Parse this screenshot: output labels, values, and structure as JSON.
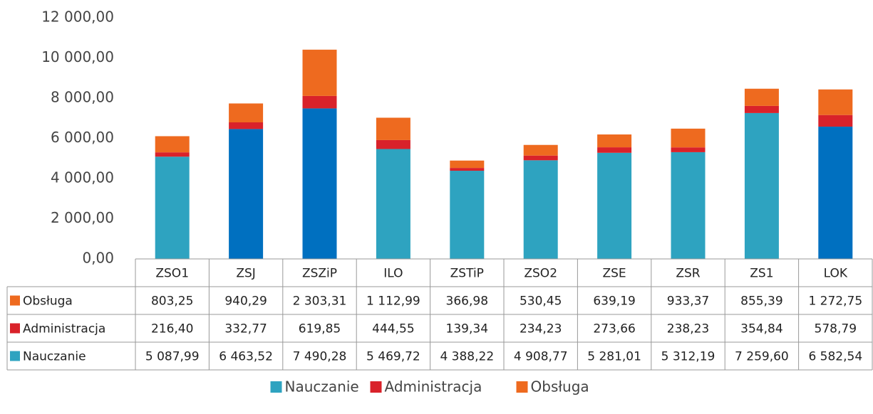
{
  "chart_data": {
    "type": "stacked_bar",
    "categories": [
      "ZSO1",
      "ZSJ",
      "ZSZiP",
      "ILO",
      "ZSTiP",
      "ZSO2",
      "ZSE",
      "ZSR",
      "ZS1",
      "LOK"
    ],
    "series": [
      {
        "name": "Nauczanie",
        "color": "#2ea3c0",
        "colors": [
          "#2ea3c0",
          "#0070c0",
          "#0070c0",
          "#2ea3c0",
          "#2ea3c0",
          "#2ea3c0",
          "#2ea3c0",
          "#2ea3c0",
          "#2ea3c0",
          "#0070c0"
        ],
        "values": [
          5087.99,
          6463.52,
          7490.28,
          5469.72,
          4388.22,
          4908.77,
          5281.01,
          5312.19,
          7259.6,
          6582.54
        ],
        "value_labels": [
          "5 087,99",
          "6 463,52",
          "7 490,28",
          "5 469,72",
          "4 388,22",
          "4 908,77",
          "5 281,01",
          "5 312,19",
          "7 259,60",
          "6 582,54"
        ]
      },
      {
        "name": "Administracja",
        "color": "#d9222a",
        "values": [
          216.4,
          332.77,
          619.85,
          444.55,
          139.34,
          234.23,
          273.66,
          238.23,
          354.84,
          578.79
        ],
        "value_labels": [
          "216,40",
          "332,77",
          "619,85",
          "444,55",
          "139,34",
          "234,23",
          "273,66",
          "238,23",
          "354,84",
          "578,79"
        ]
      },
      {
        "name": "Obsługa",
        "color": "#ee6a1f",
        "values": [
          803.25,
          940.29,
          2303.31,
          1112.99,
          366.98,
          530.45,
          639.19,
          933.37,
          855.39,
          1272.75
        ],
        "value_labels": [
          "803,25",
          "940,29",
          "2 303,31",
          "1 112,99",
          "366,98",
          "530,45",
          "639,19",
          "933,37",
          "855,39",
          "1 272,75"
        ]
      }
    ],
    "ylim": [
      0,
      12000
    ],
    "yticks": [
      {
        "value": 0,
        "label": "0,00"
      },
      {
        "value": 2000,
        "label": "2 000,00"
      },
      {
        "value": 4000,
        "label": "4 000,00"
      },
      {
        "value": 6000,
        "label": "6 000,00"
      },
      {
        "value": 8000,
        "label": "8 000,00"
      },
      {
        "value": 10000,
        "label": "10 000,00"
      },
      {
        "value": 12000,
        "label": "12 000,00"
      }
    ],
    "grid": false,
    "legend": "bottom"
  }
}
